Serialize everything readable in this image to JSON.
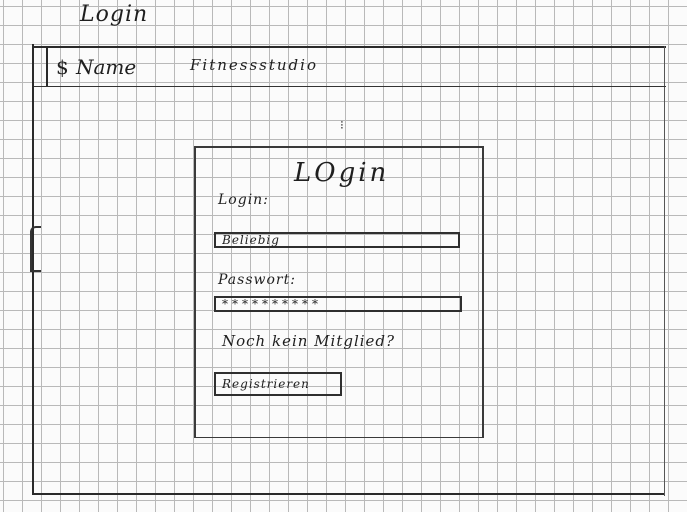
{
  "page": {
    "heading": "Login"
  },
  "header": {
    "home_icon": "$",
    "home_label": "Name",
    "site_title": "Fitnessstudio"
  },
  "login_card": {
    "title": "LOgin",
    "login_label": "Login:",
    "login_value": "Beliebig",
    "password_label": "Passwort:",
    "password_value": "**********",
    "not_member_text": "Noch kein Mitglied?",
    "register_label": "Registrieren"
  }
}
